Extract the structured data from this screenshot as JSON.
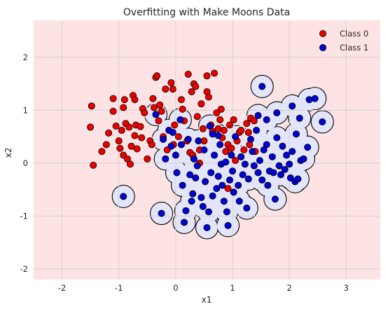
{
  "chart_data": {
    "type": "scatter",
    "title": "Overfitting with Make Moons Data",
    "xlabel": "x1",
    "ylabel": "x2",
    "xlim": [
      -2.5,
      3.6
    ],
    "ylim": [
      -2.2,
      2.7
    ],
    "xticks": [
      "-2",
      "-1",
      "0",
      "1",
      "2",
      "3"
    ],
    "xtick_values": [
      -2,
      -1,
      0,
      1,
      2,
      3
    ],
    "yticks": [
      "-2",
      "-1",
      "0",
      "1",
      "2"
    ],
    "ytick_values": [
      -2,
      -1,
      0,
      1,
      2
    ],
    "grid": true,
    "legend_position": "upper right",
    "background_region_color": "#fde3e4",
    "decision_region_color": "#e3e6fb",
    "series": [
      {
        "name": "Class 0",
        "color": "#ee0000",
        "points": [
          [
            -1.48,
            1.08
          ],
          [
            -1.5,
            0.68
          ],
          [
            -1.45,
            -0.04
          ],
          [
            -1.3,
            0.22
          ],
          [
            -1.22,
            0.35
          ],
          [
            -1.18,
            0.57
          ],
          [
            -1.1,
            1.22
          ],
          [
            -1.1,
            0.98
          ],
          [
            -1.05,
            0.7
          ],
          [
            -1.0,
            0.42
          ],
          [
            -0.98,
            0.28
          ],
          [
            -0.95,
            0.62
          ],
          [
            -0.92,
            1.05
          ],
          [
            -0.9,
            1.2
          ],
          [
            -0.88,
            0.75
          ],
          [
            -0.92,
            0.15
          ],
          [
            -0.85,
            0.08
          ],
          [
            -0.82,
            0.68
          ],
          [
            -0.8,
            -0.02
          ],
          [
            -0.78,
            0.32
          ],
          [
            -0.75,
            1.28
          ],
          [
            -0.72,
            1.2
          ],
          [
            -0.72,
            0.52
          ],
          [
            -0.7,
            0.72
          ],
          [
            -0.68,
            0.27
          ],
          [
            -0.62,
            0.69
          ],
          [
            -0.6,
            0.48
          ],
          [
            -0.58,
            1.03
          ],
          [
            -0.55,
            0.95
          ],
          [
            -0.5,
            0.08
          ],
          [
            -0.45,
            0.42
          ],
          [
            -0.42,
            0.35
          ],
          [
            -0.4,
            1.22
          ],
          [
            -0.38,
            1.05
          ],
          [
            -0.35,
            1.62
          ],
          [
            -0.33,
            1.65
          ],
          [
            -0.3,
            0.8
          ],
          [
            -0.28,
            1.1
          ],
          [
            -0.25,
            0.98
          ],
          [
            -0.22,
            0.5
          ],
          [
            -0.18,
            1.4
          ],
          [
            -0.15,
            0.25
          ],
          [
            -0.08,
            1.52
          ],
          [
            -0.05,
            1.4
          ],
          [
            -0.04,
            0.35
          ],
          [
            -0.02,
            0.72
          ],
          [
            0.05,
            0.5
          ],
          [
            0.1,
            1.2
          ],
          [
            0.12,
            1.02
          ],
          [
            0.15,
            0.8
          ],
          [
            0.2,
            0.42
          ],
          [
            0.22,
            1.68
          ],
          [
            0.25,
            0.2
          ],
          [
            0.28,
            1.35
          ],
          [
            0.3,
            0.15
          ],
          [
            0.32,
            1.5
          ],
          [
            0.35,
            1.45
          ],
          [
            0.38,
            0.88
          ],
          [
            0.42,
            0.25
          ],
          [
            0.45,
            1.12
          ],
          [
            0.48,
            0.65
          ],
          [
            0.5,
            0.42
          ],
          [
            0.55,
            1.35
          ],
          [
            0.55,
            1.65
          ],
          [
            0.58,
            1.25
          ],
          [
            0.62,
            0.72
          ],
          [
            0.65,
            0.6
          ],
          [
            0.68,
            1.7
          ],
          [
            0.72,
            0.95
          ],
          [
            0.75,
            0.65
          ],
          [
            0.78,
            0.82
          ],
          [
            0.8,
            1.02
          ],
          [
            0.82,
            0.48
          ],
          [
            0.85,
            0.62
          ],
          [
            0.88,
            0.22
          ],
          [
            0.92,
            0.35
          ],
          [
            0.95,
            0.72
          ],
          [
            0.98,
            0.28
          ],
          [
            1.02,
            0.82
          ],
          [
            1.05,
            0.05
          ],
          [
            1.08,
            0.42
          ],
          [
            1.12,
            0.58
          ],
          [
            1.15,
            0.62
          ],
          [
            1.2,
            0.25
          ],
          [
            1.25,
            0.75
          ],
          [
            1.28,
            0.58
          ],
          [
            1.3,
            0.35
          ],
          [
            1.32,
            0.85
          ],
          [
            1.38,
            0.8
          ],
          [
            1.4,
            0.22
          ],
          [
            0.92,
            -0.48
          ],
          [
            0.42,
            0.0
          ]
        ]
      },
      {
        "name": "Class 1",
        "color": "#0000d8",
        "points": [
          [
            -0.92,
            -0.63
          ],
          [
            -0.25,
            -0.95
          ],
          [
            -0.35,
            0.92
          ],
          [
            -0.22,
            0.45
          ],
          [
            -0.18,
            0.08
          ],
          [
            -0.12,
            0.62
          ],
          [
            -0.08,
            0.32
          ],
          [
            -0.05,
            0.58
          ],
          [
            0.0,
            0.15
          ],
          [
            0.02,
            -0.18
          ],
          [
            0.08,
            0.82
          ],
          [
            0.1,
            0.35
          ],
          [
            0.12,
            -0.42
          ],
          [
            0.15,
            -1.12
          ],
          [
            0.18,
            -0.9
          ],
          [
            0.22,
            0.45
          ],
          [
            0.25,
            -0.22
          ],
          [
            0.28,
            -0.72
          ],
          [
            0.3,
            -0.58
          ],
          [
            0.32,
            0.08
          ],
          [
            0.35,
            -0.28
          ],
          [
            0.38,
            -0.05
          ],
          [
            0.4,
            0.42
          ],
          [
            0.45,
            -0.65
          ],
          [
            0.48,
            -0.82
          ],
          [
            0.5,
            0.25
          ],
          [
            0.52,
            -0.35
          ],
          [
            0.55,
            -1.22
          ],
          [
            0.58,
            -0.92
          ],
          [
            0.6,
            0.7
          ],
          [
            0.62,
            -0.18
          ],
          [
            0.65,
            -0.62
          ],
          [
            0.68,
            0.15
          ],
          [
            0.72,
            -0.48
          ],
          [
            0.75,
            -0.25
          ],
          [
            0.78,
            0.35
          ],
          [
            0.8,
            -0.02
          ],
          [
            0.82,
            -0.42
          ],
          [
            0.85,
            -0.72
          ],
          [
            0.88,
            0.02
          ],
          [
            0.9,
            -0.92
          ],
          [
            0.92,
            -1.18
          ],
          [
            0.95,
            -0.32
          ],
          [
            0.98,
            0.15
          ],
          [
            1.0,
            -0.15
          ],
          [
            1.02,
            -0.55
          ],
          [
            1.05,
            0.5
          ],
          [
            1.1,
            -0.42
          ],
          [
            1.12,
            -0.72
          ],
          [
            1.15,
            0.12
          ],
          [
            1.18,
            -0.22
          ],
          [
            1.22,
            -0.02
          ],
          [
            1.25,
            -0.85
          ],
          [
            1.28,
            -0.3
          ],
          [
            1.32,
            0.45
          ],
          [
            1.35,
            0.22
          ],
          [
            1.38,
            -0.05
          ],
          [
            1.42,
            0.62
          ],
          [
            1.45,
            -0.18
          ],
          [
            1.48,
            0.05
          ],
          [
            1.52,
            -0.32
          ],
          [
            1.55,
            0.25
          ],
          [
            1.6,
            0.35
          ],
          [
            1.62,
            -0.42
          ],
          [
            1.65,
            -0.15
          ],
          [
            1.7,
            0.12
          ],
          [
            1.72,
            -0.18
          ],
          [
            1.75,
            -0.68
          ],
          [
            1.78,
            0.48
          ],
          [
            1.82,
            -0.05
          ],
          [
            1.85,
            -0.22
          ],
          [
            1.88,
            0.32
          ],
          [
            1.92,
            -0.12
          ],
          [
            1.95,
            0.15
          ],
          [
            2.0,
            -0.02
          ],
          [
            2.02,
            -0.28
          ],
          [
            2.05,
            0.22
          ],
          [
            2.1,
            -0.35
          ],
          [
            2.15,
            -0.3
          ],
          [
            2.2,
            0.05
          ],
          [
            2.25,
            0.08
          ],
          [
            2.32,
            0.3
          ],
          [
            2.05,
            1.08
          ],
          [
            2.35,
            1.2
          ],
          [
            2.45,
            1.22
          ],
          [
            2.58,
            0.78
          ],
          [
            2.12,
            0.55
          ],
          [
            1.52,
            1.45
          ],
          [
            1.6,
            0.82
          ],
          [
            1.78,
            0.95
          ],
          [
            0.65,
            0.55
          ],
          [
            0.75,
            0.52
          ],
          [
            1.45,
            0.9
          ],
          [
            2.18,
            0.85
          ]
        ]
      }
    ]
  }
}
